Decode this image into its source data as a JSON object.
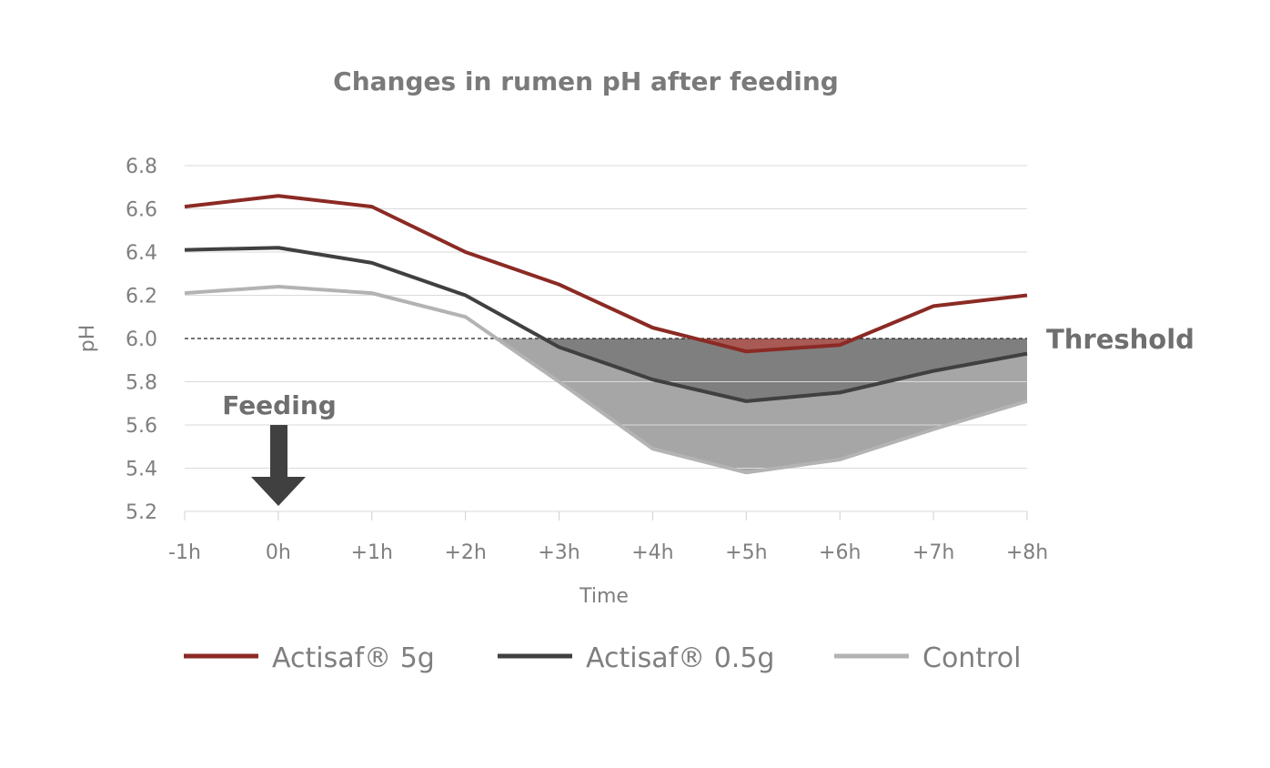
{
  "chart_data": {
    "type": "line",
    "title": "Changes in rumen pH after feeding",
    "xlabel": "Time",
    "ylabel": "pH",
    "categories": [
      "-1h",
      "0h",
      "+1h",
      "+2h",
      "+3h",
      "+4h",
      "+5h",
      "+6h",
      "+7h",
      "+8h"
    ],
    "ylim": [
      5.2,
      6.8
    ],
    "yticks": [
      "6.8",
      "6.6",
      "6.4",
      "6.2",
      "6.0",
      "5.8",
      "5.6",
      "5.4",
      "5.2"
    ],
    "grid": true,
    "legend_position": "bottom",
    "threshold": {
      "value": 6.0,
      "label": "Threshold"
    },
    "annotation": {
      "label": "Feeding",
      "at": "0h"
    },
    "series": [
      {
        "name": "Actisaf® 5g",
        "color": "#8b2a24",
        "fill": "#a85a55",
        "values": [
          6.61,
          6.66,
          6.61,
          6.4,
          6.25,
          6.05,
          5.94,
          5.97,
          6.15,
          6.2
        ]
      },
      {
        "name": "Actisaf® 0.5g",
        "color": "#404040",
        "fill": "#7f7f7f",
        "values": [
          6.41,
          6.42,
          6.35,
          6.2,
          5.96,
          5.81,
          5.71,
          5.75,
          5.85,
          5.93
        ]
      },
      {
        "name": "Control",
        "color": "#b3b3b3",
        "fill": "#a6a6a6",
        "values": [
          6.21,
          6.24,
          6.21,
          6.1,
          5.8,
          5.49,
          5.38,
          5.44,
          5.58,
          5.71
        ]
      }
    ]
  }
}
